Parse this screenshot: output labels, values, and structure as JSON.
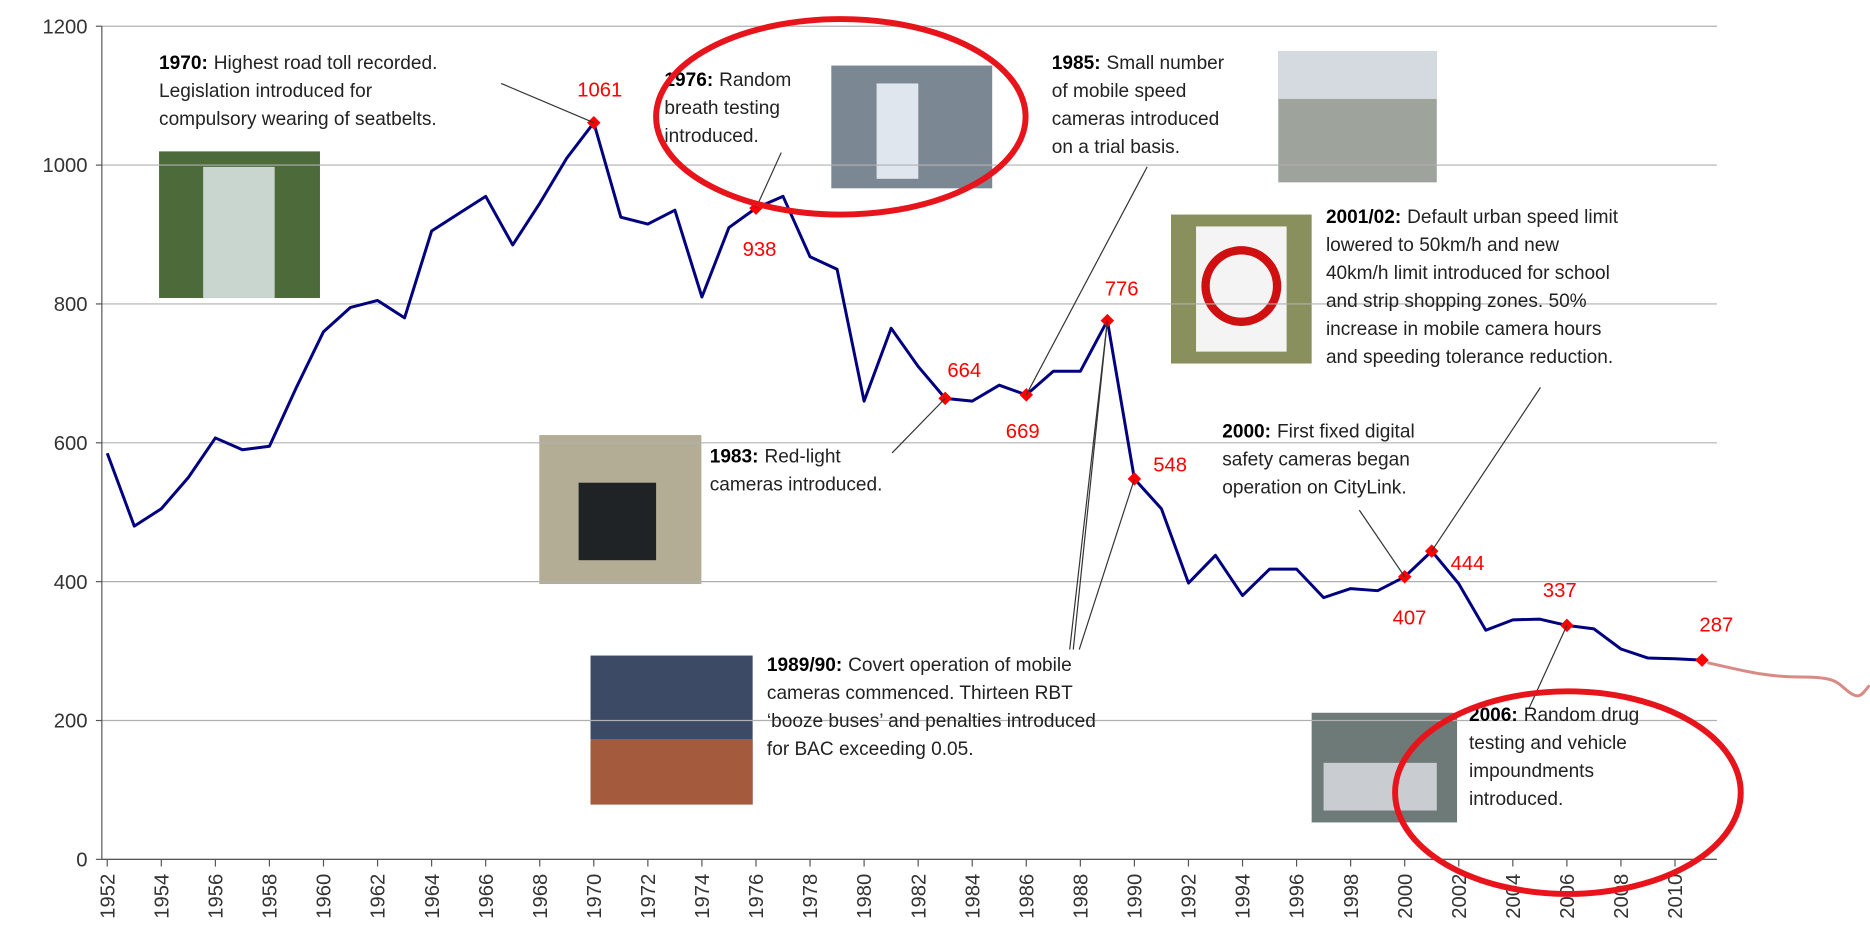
{
  "chart_data": {
    "type": "line",
    "x": [
      1952,
      1953,
      1954,
      1955,
      1956,
      1957,
      1958,
      1959,
      1960,
      1961,
      1962,
      1963,
      1964,
      1965,
      1966,
      1967,
      1968,
      1969,
      1970,
      1971,
      1972,
      1973,
      1974,
      1975,
      1976,
      1977,
      1978,
      1979,
      1980,
      1981,
      1982,
      1983,
      1984,
      1985,
      1986,
      1987,
      1988,
      1989,
      1990,
      1991,
      1992,
      1993,
      1994,
      1995,
      1996,
      1997,
      1998,
      1999,
      2000,
      2001,
      2002,
      2003,
      2004,
      2005,
      2006,
      2007,
      2008,
      2009,
      2010,
      2011
    ],
    "series": [
      {
        "color": "#000080",
        "marker_color": "#ff0000",
        "values": [
          585,
          480,
          505,
          550,
          607,
          590,
          595,
          680,
          760,
          795,
          805,
          780,
          905,
          930,
          955,
          885,
          945,
          1010,
          1061,
          925,
          915,
          935,
          810,
          910,
          938,
          955,
          868,
          850,
          660,
          765,
          710,
          664,
          660,
          683,
          669,
          703,
          703,
          776,
          548,
          505,
          398,
          438,
          380,
          418,
          418,
          377,
          390,
          387,
          407,
          444,
          397,
          330,
          345,
          346,
          337,
          332,
          303,
          290,
          289,
          287
        ],
        "labeled_indices": [
          18,
          24,
          31,
          34,
          37,
          38,
          48,
          49,
          54,
          59
        ]
      }
    ],
    "xlim": [
      1951.8,
      2011.55
    ],
    "xticks": [
      1952,
      1954,
      1956,
      1958,
      1960,
      1962,
      1964,
      1966,
      1968,
      1970,
      1972,
      1974,
      1976,
      1978,
      1980,
      1982,
      1984,
      1986,
      1988,
      1990,
      1992,
      1994,
      1996,
      1998,
      2000,
      2002,
      2004,
      2006,
      2008,
      2010
    ],
    "ylim": [
      0,
      1200
    ],
    "yticks": [
      0,
      200,
      400,
      600,
      800,
      1000,
      1200
    ],
    "grid": true,
    "annotations": [
      {
        "label": "1970:",
        "lines": [
          "Highest road toll recorded.",
          "Legislation introduced for",
          "compulsory wearing of seatbelts."
        ]
      },
      {
        "label": "1976:",
        "lines": [
          "Random",
          "breath testing",
          "introduced."
        ]
      },
      {
        "label": "1985:",
        "lines": [
          "Small number",
          "of mobile speed",
          "cameras introduced",
          "on a trial basis."
        ]
      },
      {
        "label": "2001/02:",
        "lines": [
          "Default urban speed limit",
          "lowered to 50km/h and new",
          "40km/h limit introduced for school",
          "and strip shopping zones. 50%",
          "increase in mobile camera hours",
          "and speeding tolerance reduction."
        ]
      },
      {
        "label": "1983:",
        "lines": [
          "Red-light",
          "cameras introduced."
        ]
      },
      {
        "label": "2000:",
        "lines": [
          "First fixed digital",
          "safety cameras began",
          "operation on CityLink."
        ]
      },
      {
        "label": "1989/90:",
        "lines": [
          "Covert operation of mobile",
          "cameras commenced. Thirteen RBT",
          "‘booze buses’ and penalties introduced",
          "for BAC exceeding 0.05."
        ]
      },
      {
        "label": "2006:",
        "lines": [
          "Random drug",
          "testing and vehicle",
          "impoundments",
          "introduced."
        ]
      }
    ]
  }
}
